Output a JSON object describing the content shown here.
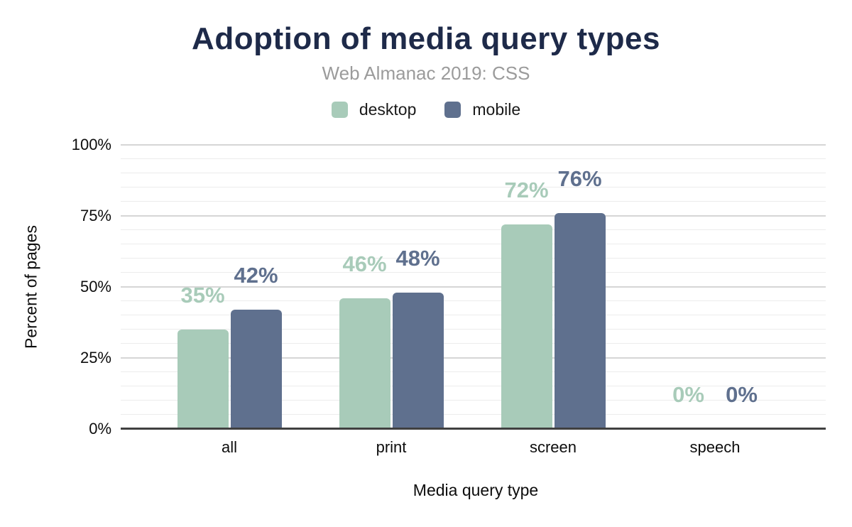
{
  "chart_data": {
    "type": "bar",
    "title": "Adoption of media query types",
    "subtitle": "Web Almanac 2019: CSS",
    "xlabel": "Media query type",
    "ylabel": "Percent of pages",
    "categories": [
      "all",
      "print",
      "screen",
      "speech"
    ],
    "series": [
      {
        "name": "desktop",
        "color": "#a8cbb9",
        "values": [
          35,
          46,
          72,
          0
        ],
        "labels": [
          "35%",
          "46%",
          "72%",
          "0%"
        ]
      },
      {
        "name": "mobile",
        "color": "#5f708e",
        "values": [
          42,
          48,
          76,
          0
        ],
        "labels": [
          "42%",
          "48%",
          "76%",
          "0%"
        ]
      }
    ],
    "ylim": [
      0,
      100
    ],
    "y_ticks": [
      "0%",
      "25%",
      "50%",
      "75%",
      "100%"
    ],
    "y_major_step": 25,
    "y_minor_step": 5,
    "grid": true,
    "legend_position": "top"
  },
  "style": {
    "title_color": "#1e2a49",
    "subtitle_color": "#9b9b9b",
    "axis_text_color": "#0d0d0d",
    "minor_grid_color": "#ececec",
    "major_grid_color": "#d6d6d6",
    "baseline_color": "#404040",
    "background_color": "#ffffff"
  }
}
